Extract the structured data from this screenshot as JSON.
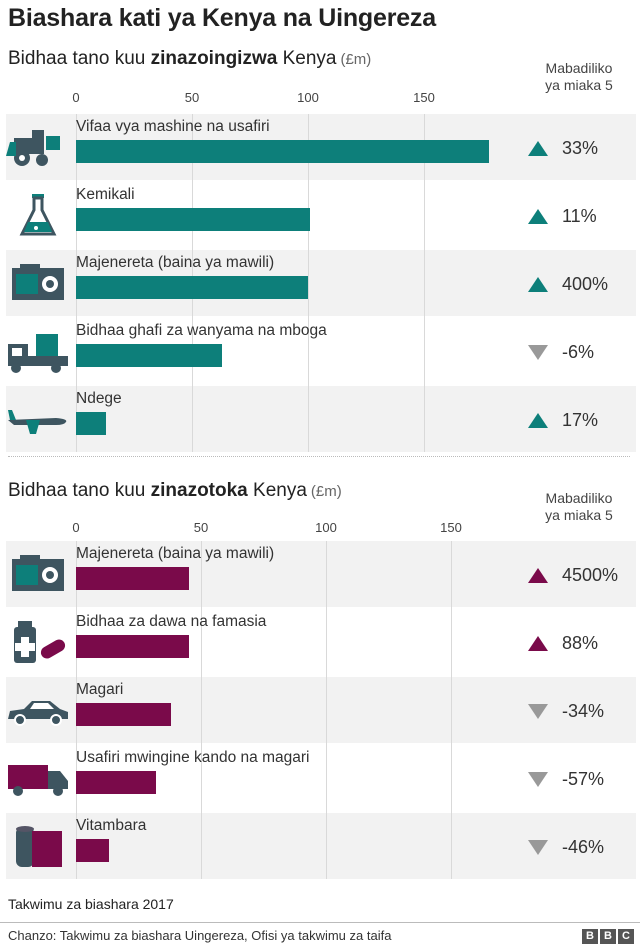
{
  "title": "Biashara kati ya Kenya na Uingereza",
  "change_header": [
    "Mabadiliko",
    "ya miaka 5"
  ],
  "colors": {
    "imports": "#0d7f7a",
    "exports": "#7a0a4a",
    "up_import": "#0d7f7a",
    "up_export": "#7a0a4a",
    "down": "#999999"
  },
  "chart_data": [
    {
      "type": "bar",
      "orientation": "horizontal",
      "title_parts": [
        "Bidhaa tano kuu ",
        "zinazoingizwa",
        " Kenya"
      ],
      "unit": "(£m)",
      "ticks": [
        "0",
        "50",
        "100",
        "150"
      ],
      "xlim": [
        0,
        190
      ],
      "categories": [
        "Vifaa vya mashine na usafiri",
        "Kemikali",
        "Majenereta (baina ya mawili)",
        "Bidhaa ghafi za wanyama na mboga",
        "Ndege"
      ],
      "values": [
        178,
        101,
        100,
        63,
        13
      ],
      "changes": [
        "33%",
        "11%",
        "400%",
        "-6%",
        "17%"
      ],
      "directions": [
        "up",
        "up",
        "up",
        "down",
        "up"
      ],
      "icons": [
        "tractor-icon",
        "flask-icon",
        "generator-icon",
        "truck-crate-icon",
        "airplane-icon"
      ]
    },
    {
      "type": "bar",
      "orientation": "horizontal",
      "title_parts": [
        "Bidhaa tano kuu ",
        "zinazotoka",
        " Kenya"
      ],
      "unit": "(£m)",
      "ticks": [
        "0",
        "50",
        "100",
        "150"
      ],
      "xlim": [
        0,
        200
      ],
      "categories": [
        "Majenereta (baina ya mawili)",
        "Bidhaa za dawa na famasia",
        "Magari",
        "Usafiri mwingine kando na magari",
        "Vitambara"
      ],
      "values": [
        45,
        45,
        38,
        32,
        13
      ],
      "changes": [
        "4500%",
        "88%",
        "-34%",
        "-57%",
        "-46%"
      ],
      "directions": [
        "up",
        "up",
        "down",
        "down",
        "down"
      ],
      "icons": [
        "generator-icon",
        "medicine-icon",
        "car-icon",
        "truck-icon",
        "fabric-roll-icon"
      ]
    }
  ],
  "note": "Takwimu za biashara 2017",
  "source": "Chanzo: Takwimu za biashara Uingereza, Ofisi ya takwimu za taifa",
  "logo": [
    "B",
    "B",
    "C"
  ]
}
